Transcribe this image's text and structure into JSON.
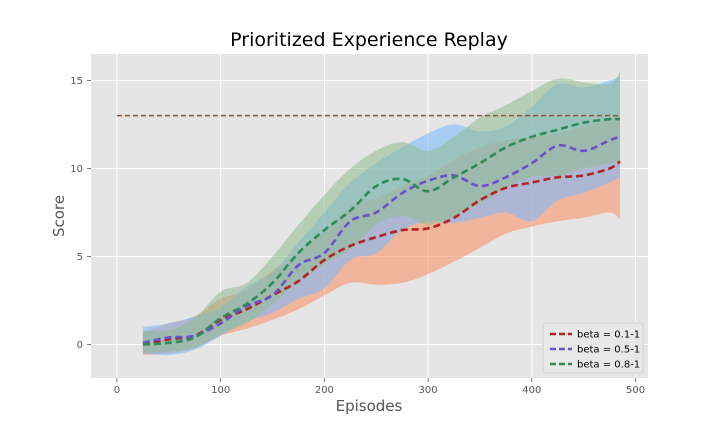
{
  "chart_data": {
    "type": "line",
    "title": "Prioritized Experience Replay",
    "xlabel": "Episodes",
    "ylabel": "Score",
    "xlim": [
      -25,
      512
    ],
    "ylim": [
      -1.9,
      16.5
    ],
    "xticks": [
      0,
      100,
      200,
      300,
      400,
      500
    ],
    "yticks": [
      0,
      5,
      10,
      15
    ],
    "grid": true,
    "legend_position": "lower-right",
    "x": [
      25,
      50,
      75,
      100,
      125,
      150,
      175,
      200,
      225,
      250,
      275,
      300,
      325,
      350,
      375,
      400,
      425,
      450,
      475,
      485
    ],
    "series": [
      {
        "name": "beta = 0.1-1",
        "color": "#b22222",
        "band_color": "#fc8d62",
        "mean": [
          0.0,
          0.3,
          0.5,
          1.4,
          2.0,
          2.8,
          3.6,
          4.8,
          5.6,
          6.1,
          6.5,
          6.6,
          7.2,
          8.2,
          8.9,
          9.2,
          9.5,
          9.6,
          10.0,
          10.4
        ],
        "lower": [
          -0.6,
          -0.5,
          -0.2,
          0.5,
          0.9,
          1.4,
          2.0,
          2.8,
          3.5,
          3.4,
          3.5,
          4.0,
          4.7,
          5.5,
          6.3,
          6.7,
          7.0,
          7.2,
          7.5,
          7.1
        ],
        "upper": [
          0.7,
          1.2,
          1.6,
          2.6,
          3.1,
          4.2,
          5.2,
          6.4,
          7.8,
          8.3,
          9.0,
          9.6,
          10.5,
          11.2,
          11.6,
          11.8,
          12.0,
          12.4,
          12.8,
          13.0
        ]
      },
      {
        "name": "beta = 0.5-1",
        "color": "#6a51c9",
        "band_color": "#74b9ff",
        "mean": [
          0.1,
          0.4,
          0.5,
          1.2,
          2.2,
          2.8,
          4.5,
          5.2,
          7.0,
          7.5,
          8.6,
          9.3,
          9.6,
          9.0,
          9.5,
          10.3,
          11.3,
          11.0,
          11.6,
          11.8
        ],
        "lower": [
          -0.5,
          -0.6,
          -0.3,
          0.5,
          1.3,
          1.8,
          2.6,
          3.2,
          4.8,
          5.2,
          6.5,
          7.0,
          6.9,
          7.2,
          7.5,
          7.0,
          8.2,
          8.6,
          9.2,
          9.5
        ],
        "upper": [
          1.0,
          1.2,
          1.6,
          2.1,
          3.3,
          4.1,
          5.8,
          7.5,
          9.2,
          10.3,
          11.2,
          12.0,
          12.5,
          12.1,
          12.4,
          13.5,
          14.8,
          14.6,
          15.0,
          15.2
        ]
      },
      {
        "name": "beta = 0.8-1",
        "color": "#2e8b57",
        "band_color": "#8fbc8f",
        "mean": [
          0.0,
          0.1,
          0.4,
          1.5,
          2.3,
          3.5,
          5.2,
          6.5,
          7.6,
          9.0,
          9.4,
          8.7,
          9.5,
          10.3,
          11.2,
          11.8,
          12.2,
          12.6,
          12.8,
          12.8
        ],
        "lower": [
          -0.5,
          -0.4,
          -0.2,
          0.6,
          1.2,
          2.3,
          3.6,
          4.6,
          5.4,
          6.8,
          7.3,
          6.8,
          7.3,
          8.0,
          8.9,
          9.5,
          9.6,
          10.0,
          10.3,
          10.4
        ],
        "upper": [
          0.8,
          0.8,
          1.5,
          3.0,
          3.5,
          5.0,
          6.8,
          8.5,
          10.0,
          11.0,
          11.5,
          11.0,
          11.8,
          12.9,
          13.6,
          14.4,
          15.1,
          14.9,
          14.8,
          15.5
        ]
      }
    ],
    "reference_line": {
      "y": 13.0,
      "x_range": [
        0,
        485
      ],
      "color": "#a0522d",
      "style": "dashed"
    }
  }
}
